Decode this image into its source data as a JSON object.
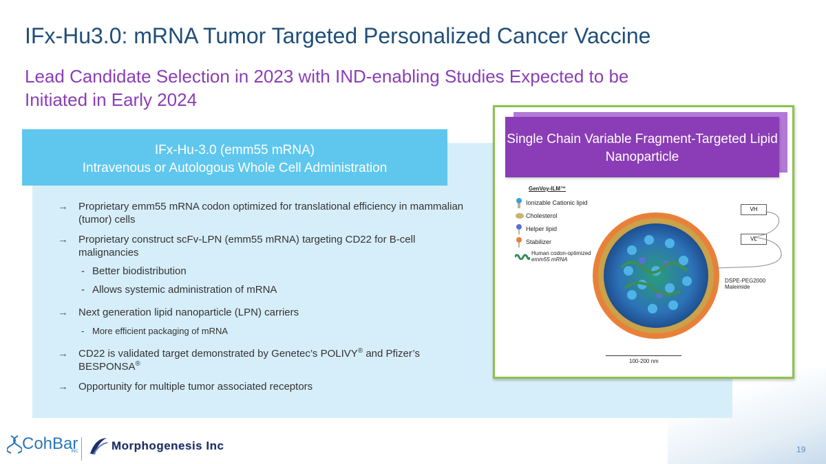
{
  "slide": {
    "title": "IFx-Hu3.0: mRNA Tumor Targeted Personalized Cancer Vaccine",
    "subtitle": "Lead Candidate Selection in 2023 with IND-enabling Studies Expected to be Initiated in Early 2024",
    "page_number": "19"
  },
  "left_panel": {
    "header_line1": "IFx-Hu-3.0 (emm55 mRNA)",
    "header_line2": "Intravenous or Autologous Whole Cell Administration",
    "bullets": {
      "b1": "Proprietary emm55 mRNA codon optimized for translational efficiency in mammalian (tumor) cells",
      "b2": "Proprietary construct scFv-LPN (emm55 mRNA) targeting CD22 for B-cell malignancies",
      "b2_sub1": "Better biodistribution",
      "b2_sub2": "Allows systemic administration of mRNA",
      "b3": "Next generation lipid nanoparticle (LPN) carriers",
      "b3_sub1": "More efficient packaging of mRNA",
      "b4_a": "CD22 is validated target demonstrated by Genetec’s POLIVY",
      "b4_b": " and Pfizer’s BESPONSA",
      "reg": "®",
      "b5": "Opportunity for multiple tumor associated receptors"
    },
    "arrow_glyph": "→",
    "dash_glyph": "-"
  },
  "right_panel": {
    "header": "Single Chain Variable Fragment-Targeted Lipid Nanoparticle",
    "legend_title": "GenVoy-ILM™",
    "legend": {
      "l1": "Ionizable Cationic lipid",
      "l2": "Cholesterol",
      "l3": "Helper lipid",
      "l4": "Stabilizer",
      "l5a": "Human codon-optimized",
      "l5b": "emm55 mRNA"
    },
    "vh": "VH",
    "vl": "VL",
    "peg_line1": "DSPE-PEG2000",
    "peg_line2": "Maleimide",
    "scale": "100-200 nm"
  },
  "footer": {
    "logo1_text": "CohBar",
    "logo1_sub": "INC",
    "logo2_text": "Morphogenesis Inc"
  },
  "colors": {
    "title": "#1f4e79",
    "subtitle": "#8a3db6",
    "blue_header": "#5fc7ee",
    "panel_bg": "#d6eef9",
    "purple_header": "#8a3db6",
    "frame_border": "#8cc24a"
  }
}
